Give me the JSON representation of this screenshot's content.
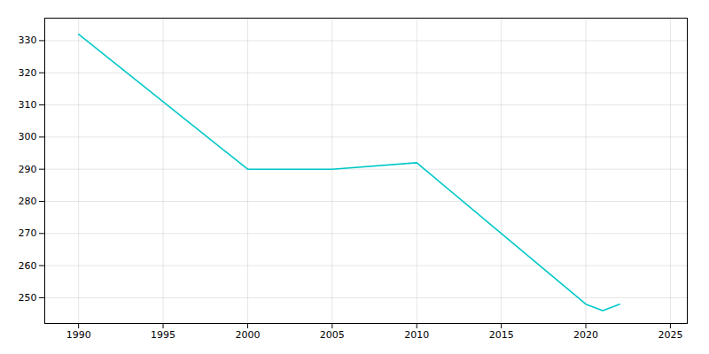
{
  "chart_data": {
    "type": "line",
    "x": [
      1990,
      2000,
      2005,
      2010,
      2020,
      2021,
      2022
    ],
    "values": [
      332,
      290,
      290,
      292,
      248,
      246,
      248
    ],
    "color": "#00C8C8",
    "xlim": [
      1988,
      2026
    ],
    "ylim": [
      242,
      337
    ],
    "xticks": [
      1990,
      1995,
      2000,
      2005,
      2010,
      2015,
      2020,
      2025
    ],
    "yticks": [
      250,
      260,
      270,
      280,
      290,
      300,
      310,
      320,
      330
    ],
    "grid": true
  }
}
